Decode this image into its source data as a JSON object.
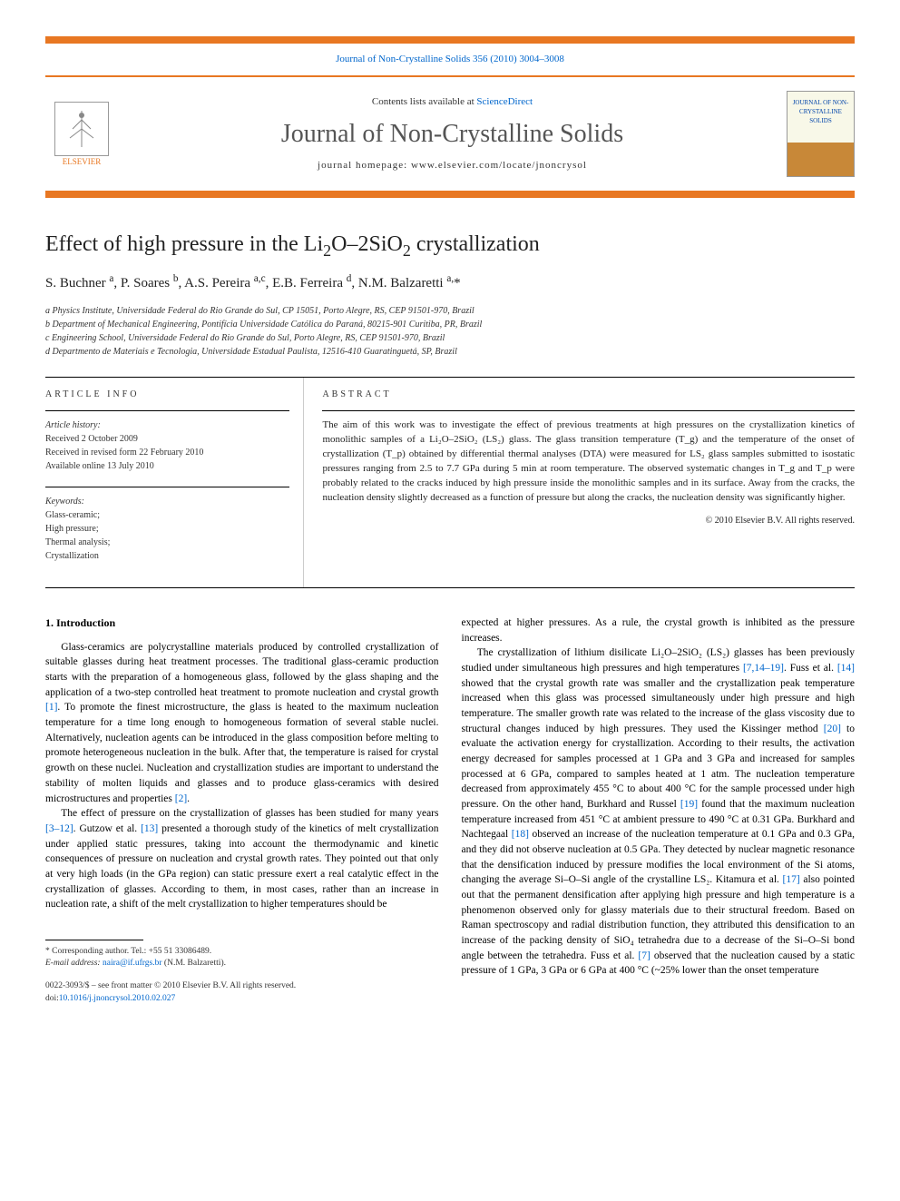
{
  "banner": {
    "top_text": "Journal of Non-Crystalline Solids 356 (2010) 3004–3008",
    "contents_available": "Contents lists available at ",
    "sciencedirect": "ScienceDirect",
    "journal_title": "Journal of Non-Crystalline Solids",
    "homepage_label": "journal homepage: ",
    "homepage_url": "www.elsevier.com/locate/jnoncrysol",
    "publisher": "ELSEVIER",
    "cover_text": "JOURNAL OF NON-CRYSTALLINE SOLIDS",
    "colors": {
      "orange": "#e87722",
      "link": "#0066cc",
      "text": "#333333"
    }
  },
  "article": {
    "title_prefix": "Effect of high pressure in the Li",
    "title_sub1": "2",
    "title_mid": "O–2SiO",
    "title_sub2": "2",
    "title_suffix": " crystallization",
    "authors_html": "S. Buchner <sup>a</sup>, P. Soares <sup>b</sup>, A.S. Pereira <sup>a,c</sup>, E.B. Ferreira <sup>d</sup>, N.M. Balzaretti <sup>a,</sup>*",
    "affiliations": [
      "a Physics Institute, Universidade Federal do Rio Grande do Sul, CP 15051, Porto Alegre, RS, CEP 91501-970, Brazil",
      "b Department of Mechanical Engineering, Pontifícia Universidade Católica do Paraná, 80215-901 Curitiba, PR, Brazil",
      "c Engineering School, Universidade Federal do Rio Grande do Sul, Porto Alegre, RS, CEP 91501-970, Brazil",
      "d Departmento de Materiais e Tecnologia, Universidade Estadual Paulista, 12516-410 Guaratinguetá, SP, Brazil"
    ]
  },
  "info": {
    "heading": "ARTICLE INFO",
    "history_label": "Article history:",
    "history": [
      "Received 2 October 2009",
      "Received in revised form 22 February 2010",
      "Available online 13 July 2010"
    ],
    "keywords_label": "Keywords:",
    "keywords": [
      "Glass-ceramic;",
      "High pressure;",
      "Thermal analysis;",
      "Crystallization"
    ]
  },
  "abstract": {
    "heading": "ABSTRACT",
    "text": "The aim of this work was to investigate the effect of previous treatments at high pressures on the crystallization kinetics of monolithic samples of a Li₂O–2SiO₂ (LS₂) glass. The glass transition temperature (T_g) and the temperature of the onset of crystallization (T_p) obtained by differential thermal analyses (DTA) were measured for LS₂ glass samples submitted to isostatic pressures ranging from 2.5 to 7.7 GPa during 5 min at room temperature. The observed systematic changes in T_g and T_p were probably related to the cracks induced by high pressure inside the monolithic samples and in its surface. Away from the cracks, the nucleation density slightly decreased as a function of pressure but along the cracks, the nucleation density was significantly higher.",
    "copyright": "© 2010 Elsevier B.V. All rights reserved."
  },
  "body": {
    "intro_heading": "1. Introduction",
    "left_paragraphs": [
      "Glass-ceramics are polycrystalline materials produced by controlled crystallization of suitable glasses during heat treatment processes. The traditional glass-ceramic production starts with the preparation of a homogeneous glass, followed by the glass shaping and the application of a two-step controlled heat treatment to promote nucleation and crystal growth [1]. To promote the finest microstructure, the glass is heated to the maximum nucleation temperature for a time long enough to homogeneous formation of several stable nuclei. Alternatively, nucleation agents can be introduced in the glass composition before melting to promote heterogeneous nucleation in the bulk. After that, the temperature is raised for crystal growth on these nuclei. Nucleation and crystallization studies are important to understand the stability of molten liquids and glasses and to produce glass-ceramics with desired microstructures and properties [2].",
      "The effect of pressure on the crystallization of glasses has been studied for many years [3–12]. Gutzow et al. [13] presented a thorough study of the kinetics of melt crystallization under applied static pressures, taking into account the thermodynamic and kinetic consequences of pressure on nucleation and crystal growth rates. They pointed out that only at very high loads (in the GPa region) can static pressure exert a real catalytic effect in the crystallization of glasses. According to them, in most cases, rather than an increase in nucleation rate, a shift of the melt crystallization to higher temperatures should be"
    ],
    "right_paragraphs": [
      "expected at higher pressures. As a rule, the crystal growth is inhibited as the pressure increases.",
      "The crystallization of lithium disilicate Li₂O–2SiO₂ (LS₂) glasses has been previously studied under simultaneous high pressures and high temperatures [7,14–19]. Fuss et al. [14] showed that the crystal growth rate was smaller and the crystallization peak temperature increased when this glass was processed simultaneously under high pressure and high temperature. The smaller growth rate was related to the increase of the glass viscosity due to structural changes induced by high pressures. They used the Kissinger method [20] to evaluate the activation energy for crystallization. According to their results, the activation energy decreased for samples processed at 1 GPa and 3 GPa and increased for samples processed at 6 GPa, compared to samples heated at 1 atm. The nucleation temperature decreased from approximately 455 °C to about 400 °C for the sample processed under high pressure. On the other hand, Burkhard and Russel [19] found that the maximum nucleation temperature increased from 451 °C at ambient pressure to 490 °C at 0.31 GPa. Burkhard and Nachtegaal [18] observed an increase of the nucleation temperature at 0.1 GPa and 0.3 GPa, and they did not observe nucleation at 0.5 GPa. They detected by nuclear magnetic resonance that the densification induced by pressure modifies the local environment of the Si atoms, changing the average Si–O–Si angle of the crystalline LS₂. Kitamura et al. [17] also pointed out that the permanent densification after applying high pressure and high temperature is a phenomenon observed only for glassy materials due to their structural freedom. Based on Raman spectroscopy and radial distribution function, they attributed this densification to an increase of the packing density of SiO₄ tetrahedra due to a decrease of the Si–O–Si bond angle between the tetrahedra. Fuss et al. [7] observed that the nucleation caused by a static pressure of 1 GPa, 3 GPa or 6 GPa at 400 °C (~25% lower than the onset temperature"
    ]
  },
  "footnote": {
    "corresponding": "* Corresponding author. Tel.: +55 51 33086489.",
    "email_label": "E-mail address: ",
    "email": "naira@if.ufrgs.br",
    "email_name": " (N.M. Balzaretti)."
  },
  "doi": {
    "front_matter": "0022-3093/$ – see front matter © 2010 Elsevier B.V. All rights reserved.",
    "doi_label": "doi:",
    "doi": "10.1016/j.jnoncrysol.2010.02.027"
  }
}
